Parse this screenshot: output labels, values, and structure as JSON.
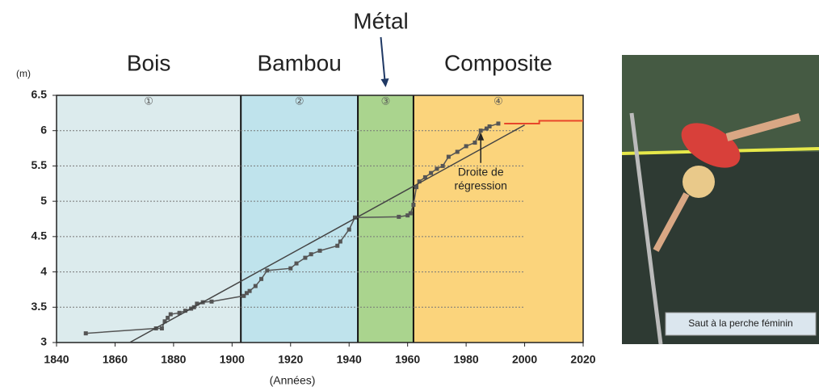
{
  "chart_data": {
    "type": "line",
    "y_unit": "(m)",
    "x_label": "(Années)",
    "xlim": [
      1840,
      2020
    ],
    "xticks": [
      1840,
      1860,
      1880,
      1900,
      1920,
      1940,
      1960,
      1980,
      2000,
      2020
    ],
    "ylim": [
      3,
      6.5
    ],
    "yticks": [
      3,
      3.5,
      4,
      4.5,
      5,
      5.5,
      6,
      6.5
    ],
    "grid": true,
    "periods": [
      {
        "label": "Bois",
        "marker": "①",
        "start": 1840,
        "end": 1903,
        "color": "#dcebed"
      },
      {
        "label": "Bambou",
        "marker": "②",
        "start": 1903,
        "end": 1943,
        "color": "#bfe3ec"
      },
      {
        "label": "Métal",
        "marker": "③",
        "start": 1943,
        "end": 1962,
        "color": "#aad48e"
      },
      {
        "label": "Composite",
        "marker": "④",
        "start": 1962,
        "end": 2020,
        "color": "#fbd47c"
      }
    ],
    "series": [
      {
        "color": "#555555",
        "markers": true,
        "x": [
          1850,
          1874,
          1876,
          1877,
          1878,
          1879,
          1882,
          1884,
          1886,
          1887,
          1888,
          1890,
          1893,
          1904,
          1905,
          1906,
          1908,
          1910,
          1912,
          1920,
          1922,
          1925,
          1927,
          1930,
          1936,
          1937,
          1940,
          1942,
          1957,
          1960,
          1961,
          1962,
          1963,
          1964,
          1966,
          1968,
          1970,
          1972,
          1974,
          1977,
          1980,
          1983,
          1985,
          1987,
          1988,
          1991
        ],
        "values": [
          3.13,
          3.2,
          3.2,
          3.3,
          3.35,
          3.4,
          3.42,
          3.45,
          3.48,
          3.5,
          3.55,
          3.57,
          3.58,
          3.66,
          3.7,
          3.73,
          3.8,
          3.9,
          4.02,
          4.05,
          4.12,
          4.2,
          4.25,
          4.3,
          4.37,
          4.43,
          4.6,
          4.77,
          4.78,
          4.8,
          4.83,
          4.95,
          5.2,
          5.28,
          5.34,
          5.4,
          5.46,
          5.5,
          5.63,
          5.7,
          5.78,
          5.83,
          6.0,
          6.03,
          6.06,
          6.1
        ]
      },
      {
        "color": "#e8462a",
        "markers": false,
        "x": [
          1993,
          2005,
          2005,
          2020
        ],
        "values": [
          6.1,
          6.1,
          6.14,
          6.14
        ]
      },
      {
        "color": "#444444",
        "markers": false,
        "x": [
          1865,
          2000
        ],
        "values": [
          3.0,
          6.08
        ]
      }
    ],
    "annotation": {
      "lines": [
        "Droite de",
        "régression"
      ],
      "x": 1985,
      "y": 6.0
    }
  },
  "photo": {
    "caption": "Saut à la perche féminin"
  }
}
